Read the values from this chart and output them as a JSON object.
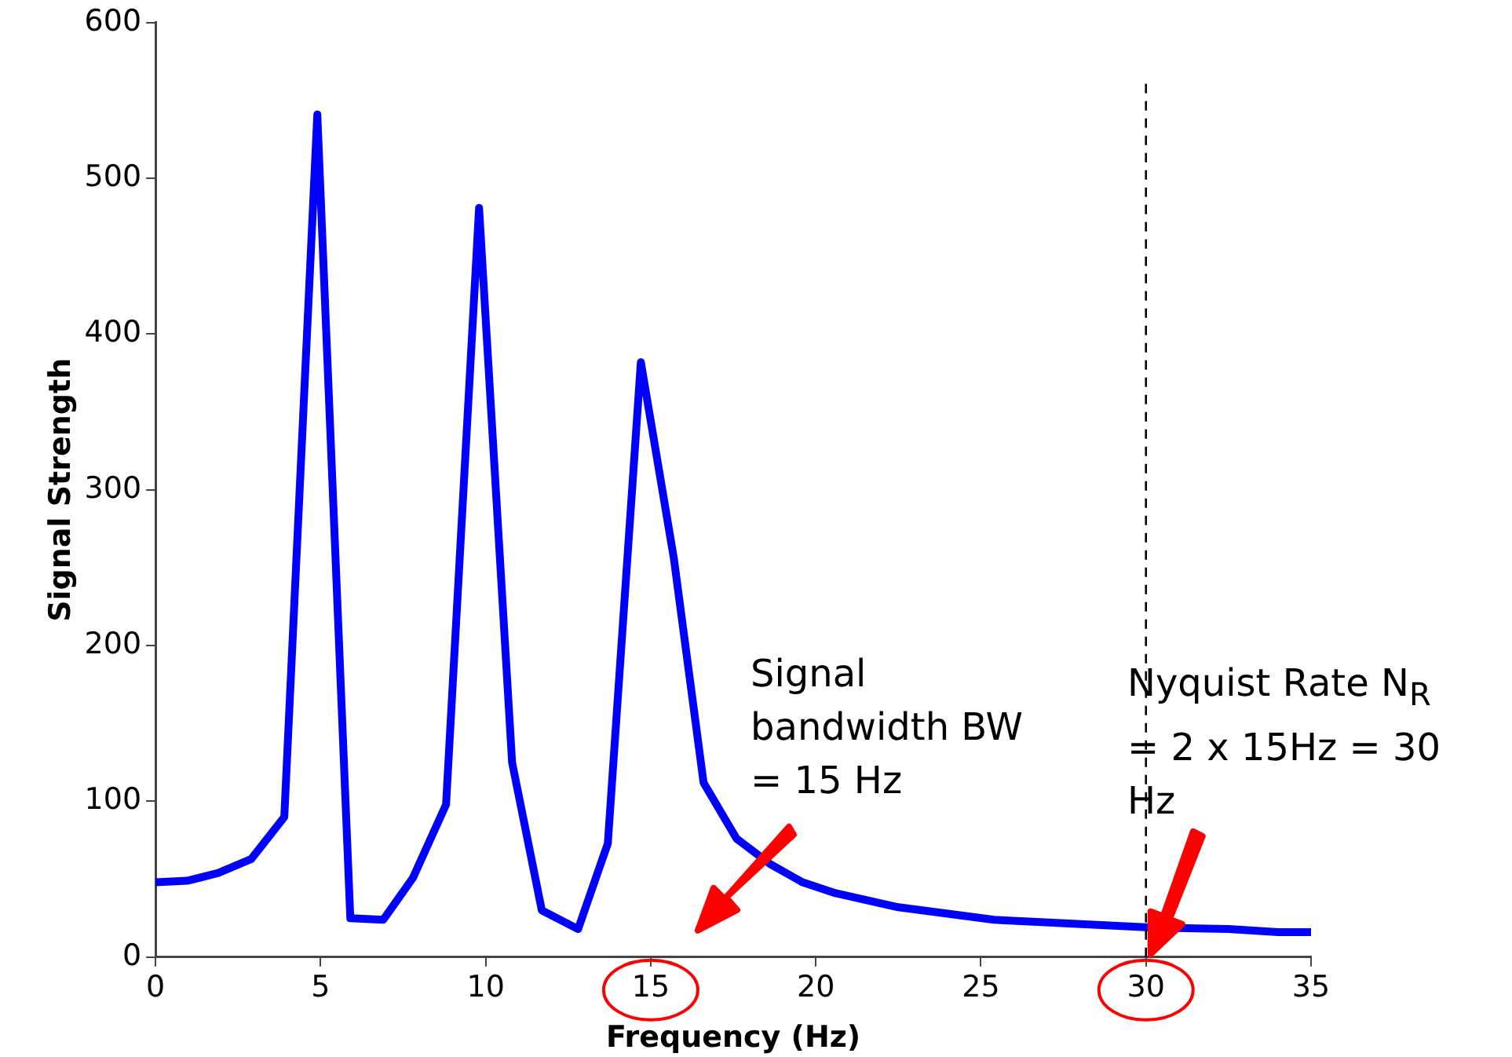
{
  "chart_data": {
    "type": "line",
    "xlabel": "Frequency (Hz)",
    "ylabel": "Signal Strength",
    "x": [
      0,
      0.96,
      1.9,
      2.9,
      3.9,
      4.9,
      5.9,
      6.9,
      7.8,
      8.8,
      9.8,
      10.8,
      11.7,
      12.8,
      13.7,
      14.7,
      15.7,
      16.6,
      17.6,
      18.6,
      19.6,
      20.6,
      22.5,
      25.4,
      30.1,
      32.5,
      34,
      35
    ],
    "series": [
      {
        "color": "#0000ff",
        "values": [
          48,
          49,
          54,
          63,
          90,
          541,
          25,
          24,
          51,
          98,
          481,
          125,
          30,
          18,
          73,
          382,
          256,
          112,
          76,
          60,
          48,
          41,
          32,
          24,
          19,
          18,
          16,
          16
        ]
      }
    ],
    "xlim": [
      0,
      35
    ],
    "xticks": [
      0,
      5,
      10,
      15,
      20,
      25,
      30,
      35
    ],
    "ylim": [
      0,
      600
    ],
    "yticks": [
      0,
      100,
      200,
      300,
      400,
      500,
      600
    ],
    "grid": false,
    "legend": false,
    "marker": "none",
    "line_style": "solid",
    "ref_lines": [
      {
        "axis": "x",
        "value": 30,
        "color": "#000000",
        "line_style": "dashed"
      }
    ],
    "annotations": [
      "Signal bandwidth BW = 15 Hz",
      "Nyquist Rate N$_{R}$ = 2 x 15Hz = 30 Hz"
    ]
  }
}
